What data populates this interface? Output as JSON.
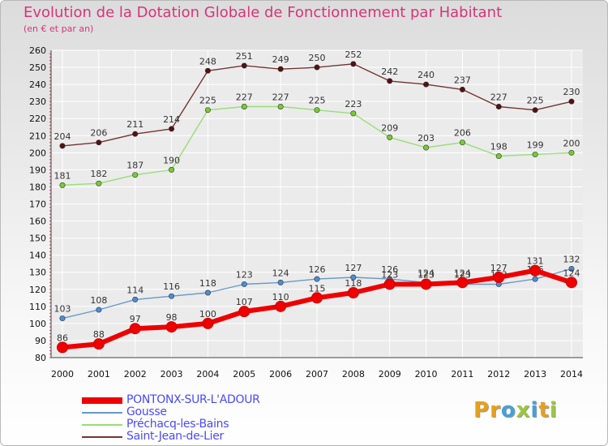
{
  "header": {
    "title": "Evolution de la Dotation Globale de Fonctionnement par Habitant",
    "subtitle": "(en € et par an)"
  },
  "logo": {
    "letters": [
      "P",
      "r",
      "o",
      "x",
      "i",
      "t",
      "i"
    ],
    "colors": [
      "#e6a01c",
      "#e6a01c",
      "#46a0d8",
      "#9bc73c",
      "#46a0d8",
      "#e6a01c",
      "#9bc73c"
    ]
  },
  "chart_data": {
    "type": "line",
    "title": "Evolution de la Dotation Globale de Fonctionnement par Habitant",
    "subtitle": "(en € et par an)",
    "xlabel": "",
    "ylabel": "",
    "x": [
      2000,
      2001,
      2002,
      2003,
      2004,
      2005,
      2006,
      2007,
      2008,
      2009,
      2010,
      2011,
      2012,
      2013,
      2014
    ],
    "x_labels": [
      "2000",
      "2001",
      "2002",
      "2003",
      "2004",
      "2005",
      "2006",
      "2007",
      "2008",
      "2009",
      "2010",
      "2011",
      "2012",
      "2013",
      "2014"
    ],
    "ylim": [
      80,
      260
    ],
    "yticks": [
      80,
      90,
      100,
      110,
      120,
      130,
      140,
      150,
      160,
      170,
      180,
      190,
      200,
      210,
      220,
      230,
      240,
      250,
      260
    ],
    "grid": true,
    "legend_position": "bottom-left",
    "series": [
      {
        "name": "PONTONX-SUR-L'ADOUR",
        "color": "#ee0000",
        "marker": "#ee0000",
        "values": [
          86,
          88,
          97,
          98,
          100,
          107,
          110,
          115,
          118,
          123,
          123,
          124,
          127,
          131,
          124
        ]
      },
      {
        "name": "Gousse",
        "color": "#6699cc",
        "marker": "#4a8ed6",
        "values": [
          103,
          108,
          114,
          116,
          118,
          123,
          124,
          126,
          127,
          126,
          124,
          123,
          123,
          126,
          132
        ]
      },
      {
        "name": "Préchacq-les-Bains",
        "color": "#99dd77",
        "marker": "#77cc33",
        "values": [
          181,
          182,
          187,
          190,
          225,
          227,
          227,
          225,
          223,
          209,
          203,
          206,
          198,
          199,
          200
        ]
      },
      {
        "name": "Saint-Jean-de-Lier",
        "color": "#773333",
        "marker": "#551111",
        "values": [
          204,
          206,
          211,
          214,
          248,
          251,
          249,
          250,
          252,
          242,
          240,
          237,
          227,
          225,
          230
        ]
      }
    ]
  }
}
